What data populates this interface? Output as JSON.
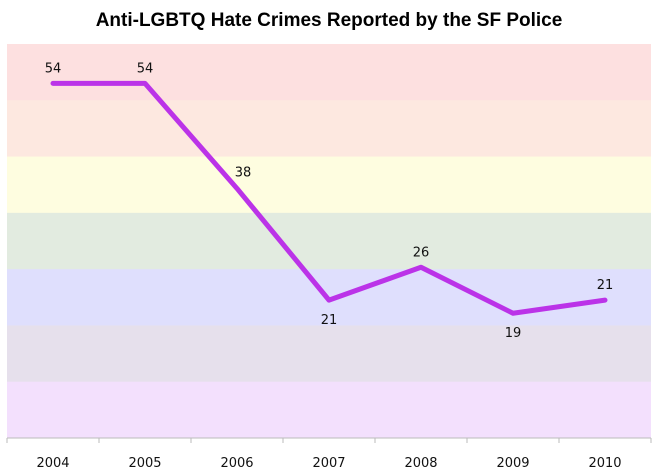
{
  "chart_data": {
    "type": "line",
    "title": "Anti-LGBTQ Hate Crimes Reported by the SF Police",
    "xlabel": "",
    "ylabel": "",
    "categories": [
      "2004",
      "2005",
      "2006",
      "2007",
      "2008",
      "2009",
      "2010"
    ],
    "series": [
      {
        "values": [
          54,
          54,
          38,
          21,
          26,
          19,
          21
        ],
        "color": "#bb33e8"
      }
    ],
    "ylim": [
      0,
      60
    ],
    "grid": false,
    "legend": "none",
    "data_labels": true,
    "background_bands": [
      "#fde0e0",
      "#fde8e0",
      "#fefde0",
      "#e2ebe0",
      "#dfdffd",
      "#e6e0ec",
      "#f3e0fd"
    ]
  }
}
